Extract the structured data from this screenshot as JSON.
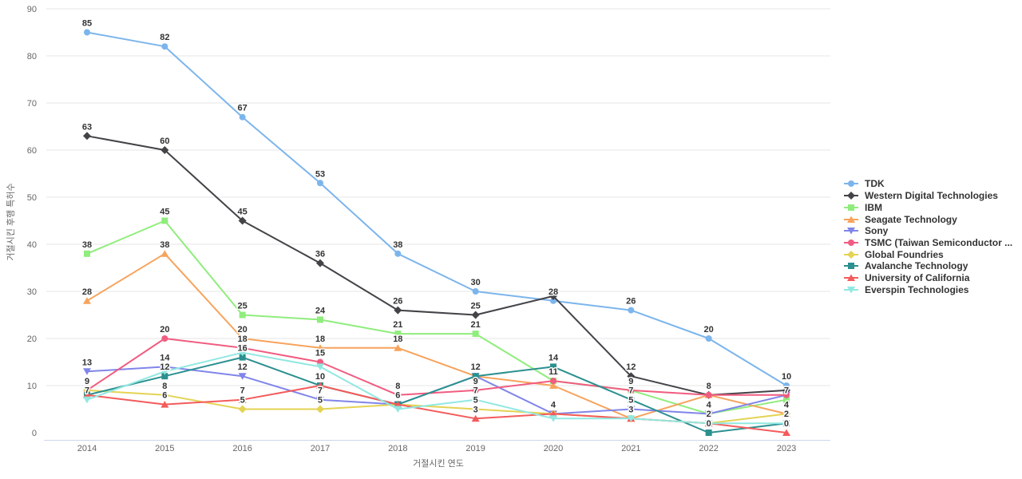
{
  "chart_data": {
    "type": "line",
    "title": "",
    "xlabel": "거절시킨 연도",
    "ylabel": "거절시킨 후행 특허수",
    "x": [
      2014,
      2015,
      2016,
      2017,
      2018,
      2019,
      2020,
      2021,
      2022,
      2023
    ],
    "ylim": [
      0,
      90
    ],
    "ytick_interval": 10,
    "grid": true,
    "legend_position": "right",
    "colors": {
      "grid": "#e6e6e6",
      "axis_line": "#ccd6eb",
      "tick_text": "#666666",
      "data_label": "#333333",
      "legend_text": "#333333",
      "background": "#ffffff"
    },
    "series": [
      {
        "name": "TDK",
        "color": "#7cb5ec",
        "marker": "circle",
        "values": [
          85,
          82,
          67,
          53,
          38,
          30,
          28,
          26,
          20,
          10
        ]
      },
      {
        "name": "Western Digital Technologies",
        "color": "#434348",
        "marker": "diamond",
        "values": [
          63,
          60,
          45,
          36,
          26,
          25,
          29,
          12,
          8,
          9
        ]
      },
      {
        "name": "IBM",
        "color": "#90ed7d",
        "marker": "square",
        "values": [
          38,
          45,
          25,
          24,
          21,
          21,
          11,
          9,
          4,
          7
        ]
      },
      {
        "name": "Seagate Technology",
        "color": "#f7a35c",
        "marker": "triangle",
        "values": [
          28,
          38,
          20,
          18,
          18,
          12,
          10,
          3,
          8,
          4
        ]
      },
      {
        "name": "Sony",
        "color": "#8085e9",
        "marker": "triangle-down",
        "values": [
          13,
          14,
          12,
          7,
          6,
          12,
          4,
          5,
          4,
          8
        ]
      },
      {
        "name": "TSMC (Taiwan Semiconductor ...",
        "color": "#f15c80",
        "marker": "circle",
        "values": [
          9,
          20,
          18,
          15,
          8,
          9,
          11,
          9,
          8,
          8
        ]
      },
      {
        "name": "Global Foundries",
        "color": "#e4d354",
        "marker": "diamond",
        "values": [
          9,
          8,
          5,
          5,
          6,
          5,
          4,
          3,
          2,
          4
        ]
      },
      {
        "name": "Avalanche Technology",
        "color": "#2b908f",
        "marker": "square",
        "values": [
          8,
          12,
          16,
          10,
          6,
          12,
          14,
          7,
          0,
          2
        ]
      },
      {
        "name": "University of California",
        "color": "#f45b5b",
        "marker": "triangle",
        "values": [
          8,
          6,
          7,
          10,
          6,
          3,
          4,
          3,
          2,
          0
        ]
      },
      {
        "name": "Everspin Technologies",
        "color": "#91e8e1",
        "marker": "triangle-down",
        "values": [
          7,
          13,
          17,
          14,
          5,
          7,
          3,
          3,
          2,
          2
        ]
      }
    ]
  }
}
